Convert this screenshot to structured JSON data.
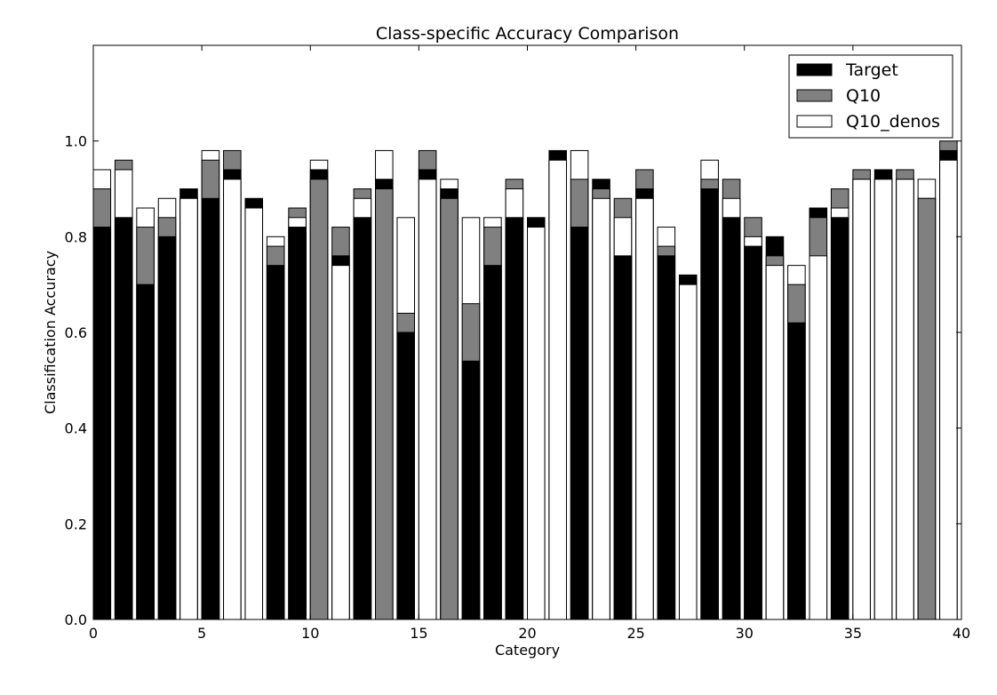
{
  "chart_data": {
    "type": "bar",
    "title": "Class-specific Accuracy Comparison",
    "xlabel": "Category",
    "ylabel": "Classification Accuracy",
    "xlim": [
      0,
      40
    ],
    "ylim": [
      0,
      1.2
    ],
    "xticks": [
      "0",
      "5",
      "10",
      "15",
      "20",
      "25",
      "30",
      "35",
      "40"
    ],
    "yticks": [
      "0.0",
      "0.2",
      "0.4",
      "0.6",
      "0.8",
      "1.0"
    ],
    "legend_position": "top-right",
    "grid": false,
    "series": [
      {
        "name": "Target",
        "color": "#000000",
        "values": [
          0.82,
          0.84,
          0.7,
          0.8,
          0.9,
          0.88,
          0.94,
          0.88,
          0.74,
          0.82,
          0.94,
          0.76,
          0.84,
          0.92,
          0.6,
          0.94,
          0.9,
          0.54,
          0.74,
          0.84,
          0.84,
          0.98,
          0.82,
          0.92,
          0.76,
          0.9,
          0.76,
          0.72,
          0.9,
          0.84,
          0.78,
          0.8,
          0.62,
          0.86,
          0.84,
          0.92,
          0.94,
          0.92,
          0.88,
          0.98
        ]
      },
      {
        "name": "Q10",
        "color": "#808080",
        "values": [
          0.9,
          0.96,
          0.82,
          0.84,
          0.88,
          0.96,
          0.98,
          0.86,
          0.78,
          0.86,
          0.92,
          0.82,
          0.9,
          0.9,
          0.64,
          0.98,
          0.88,
          0.66,
          0.82,
          0.92,
          0.82,
          0.96,
          0.92,
          0.9,
          0.88,
          0.94,
          0.78,
          0.7,
          0.92,
          0.92,
          0.84,
          0.76,
          0.7,
          0.84,
          0.9,
          0.94,
          0.92,
          0.94,
          0.88,
          1.0
        ]
      },
      {
        "name": "Q10_denos",
        "color": "#ffffff",
        "values": [
          0.94,
          0.94,
          0.86,
          0.88,
          0.88,
          0.98,
          0.92,
          0.86,
          0.8,
          0.84,
          0.96,
          0.74,
          0.88,
          0.98,
          0.84,
          0.92,
          0.92,
          0.84,
          0.84,
          0.9,
          0.82,
          0.96,
          0.98,
          0.88,
          0.84,
          0.88,
          0.82,
          0.7,
          0.96,
          0.88,
          0.8,
          0.74,
          0.74,
          0.76,
          0.86,
          0.92,
          0.92,
          0.92,
          0.92,
          0.96
        ]
      }
    ]
  }
}
